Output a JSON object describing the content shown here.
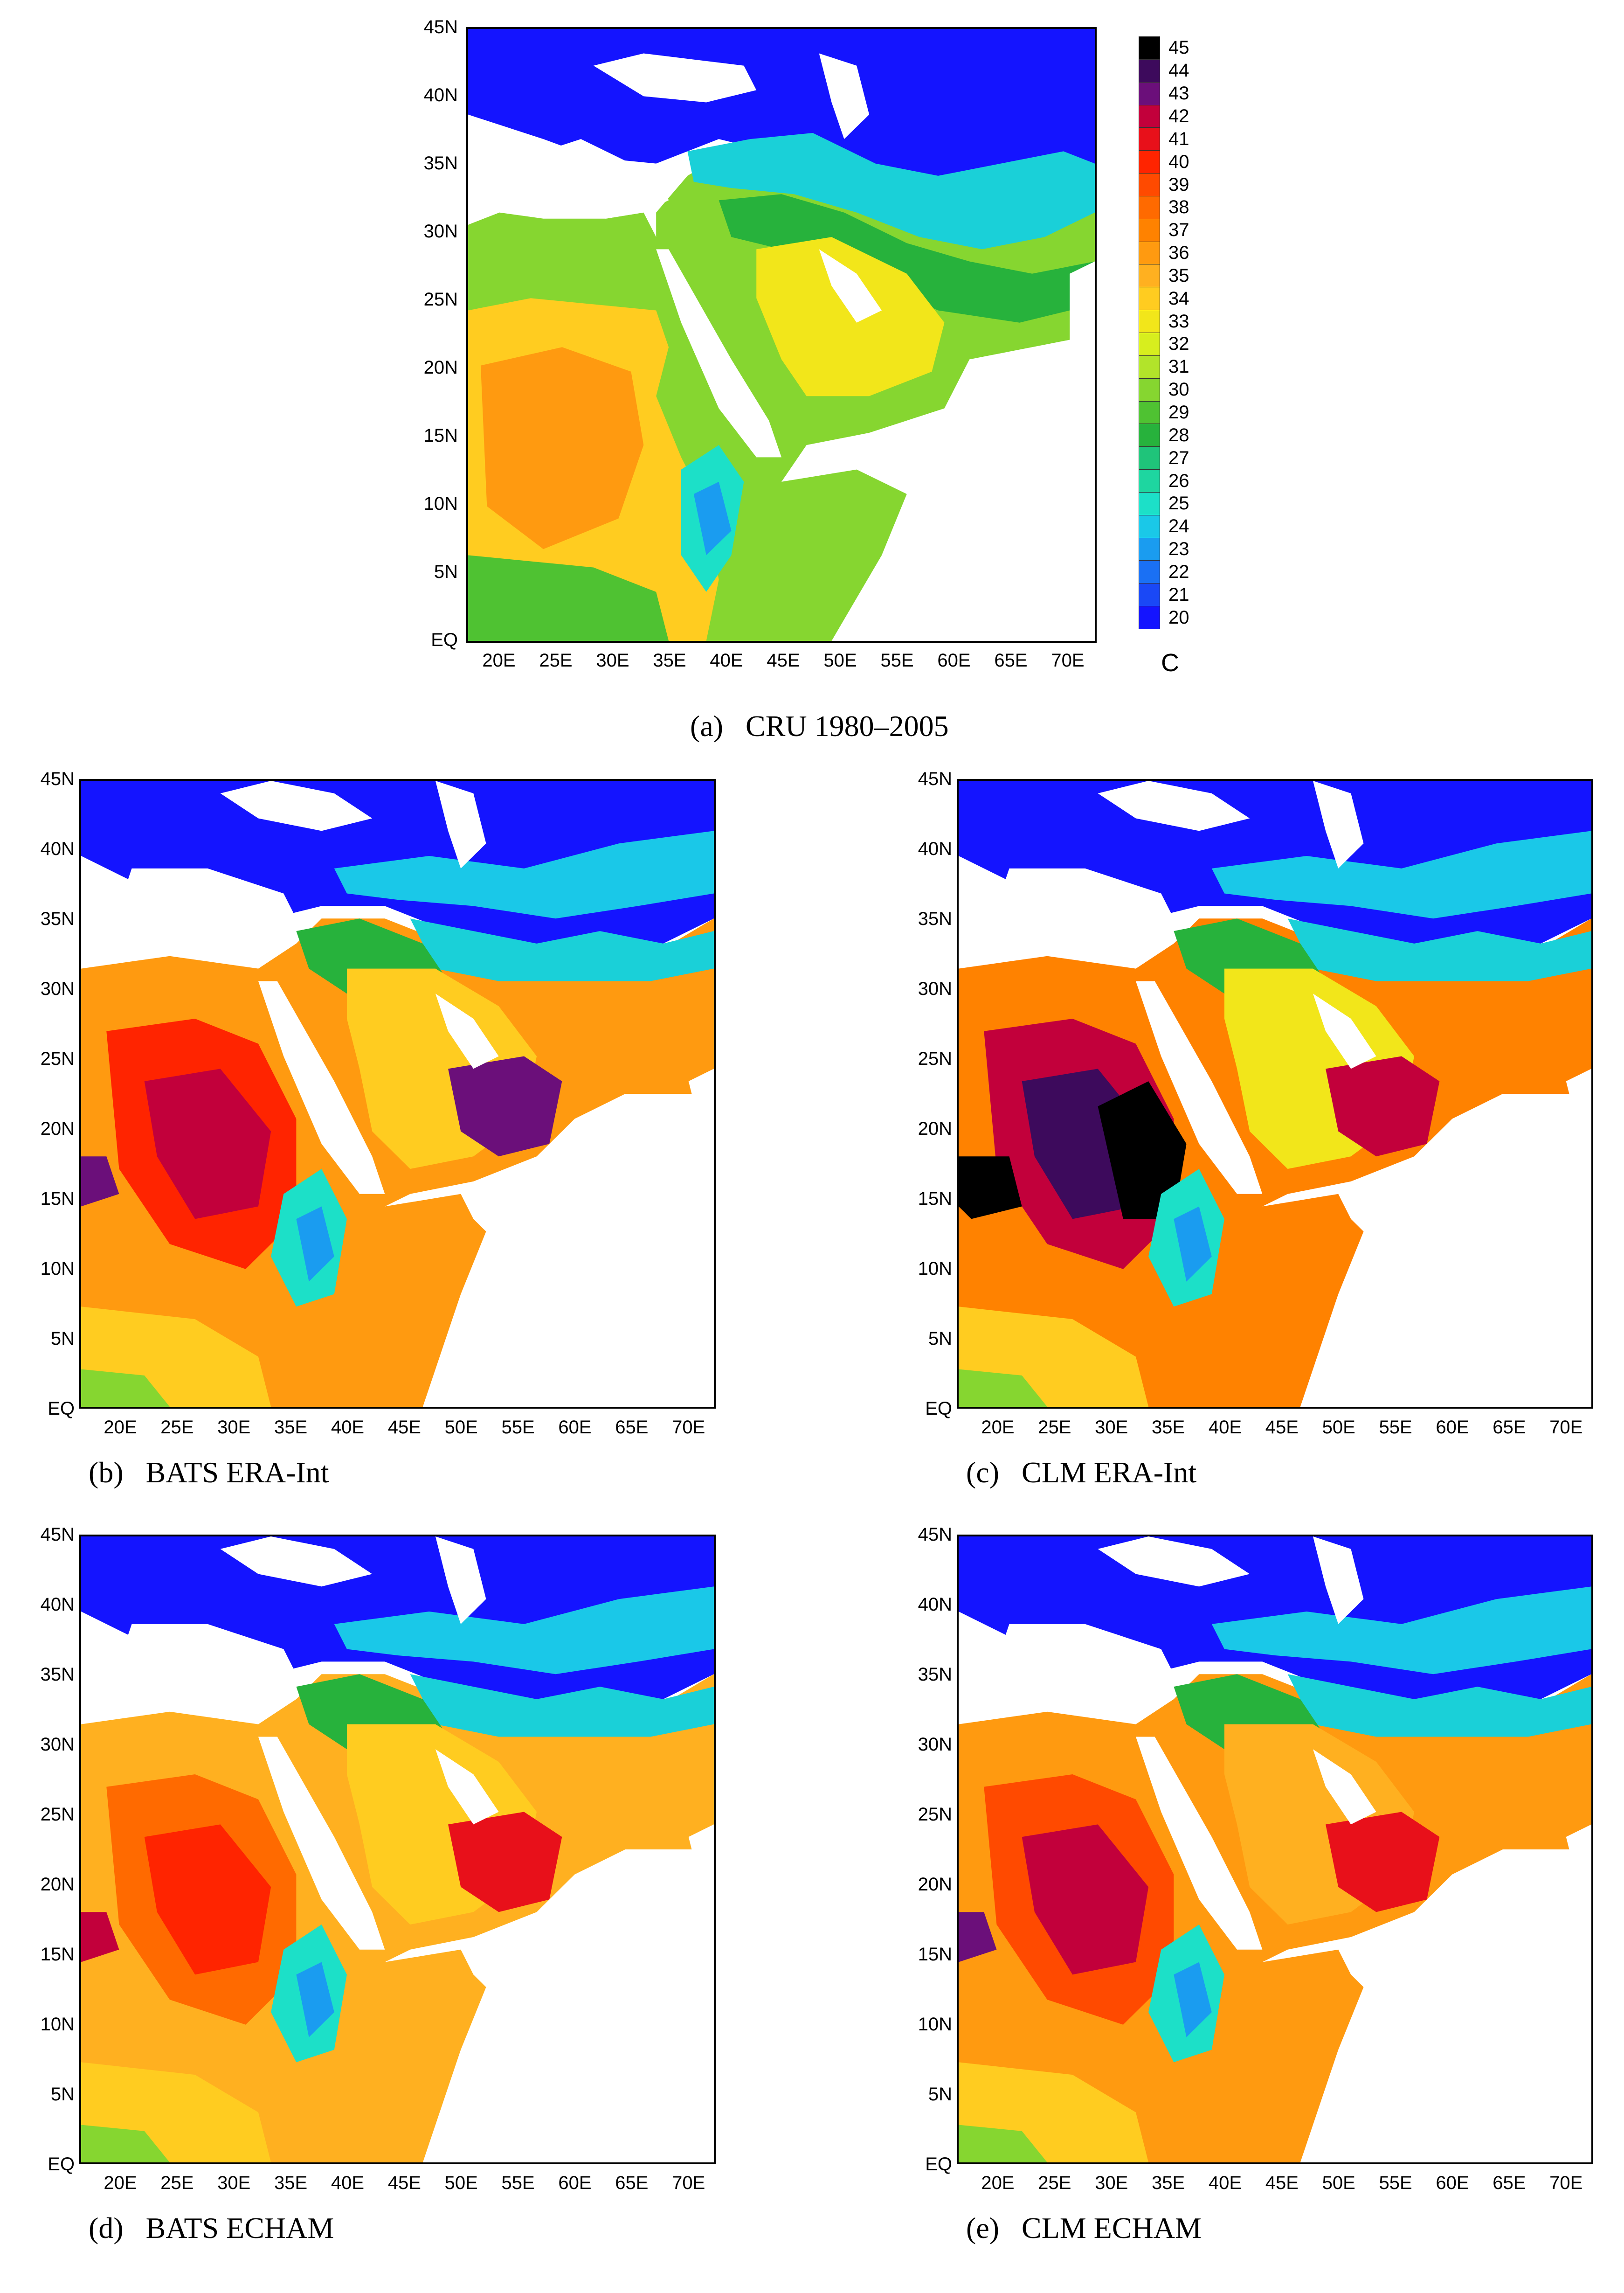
{
  "axes": {
    "lat_labels": [
      "45N",
      "40N",
      "35N",
      "30N",
      "25N",
      "20N",
      "15N",
      "10N",
      "5N",
      "EQ"
    ],
    "lon_labels": [
      "20E",
      "25E",
      "30E",
      "35E",
      "40E",
      "45E",
      "50E",
      "55E",
      "60E",
      "65E",
      "70E"
    ]
  },
  "colorbar": {
    "unit": "C",
    "levels": [
      "45",
      "44",
      "43",
      "42",
      "41",
      "40",
      "39",
      "38",
      "37",
      "36",
      "35",
      "34",
      "33",
      "32",
      "31",
      "30",
      "29",
      "28",
      "27",
      "26",
      "25",
      "24",
      "23",
      "22",
      "21",
      "20"
    ],
    "colors": [
      "#000000",
      "#3d0a5c",
      "#6b0f7a",
      "#c2003b",
      "#e8101a",
      "#ff2400",
      "#ff4a00",
      "#ff6a00",
      "#ff8200",
      "#ff9a10",
      "#ffb020",
      "#ffcc20",
      "#f2e61a",
      "#d7ee1e",
      "#b2e42a",
      "#86d630",
      "#4fc232",
      "#27b23c",
      "#1fc47a",
      "#1ed6a0",
      "#1ce0c8",
      "#1ac8e8",
      "#1a9cf0",
      "#1a70f4",
      "#1a48f6",
      "#1414ff"
    ]
  },
  "panels": [
    {
      "caption": "(a)   CRU 1980–2005",
      "style": "cru"
    },
    {
      "caption": "(b)   BATS ERA-Int",
      "style": "hot"
    },
    {
      "caption": "(c)   CLM ERA-Int",
      "style": "hottest"
    },
    {
      "caption": "(d)   BATS ECHAM",
      "style": "warm"
    },
    {
      "caption": "(e)   CLM ECHAM",
      "style": "warmer"
    }
  ]
}
